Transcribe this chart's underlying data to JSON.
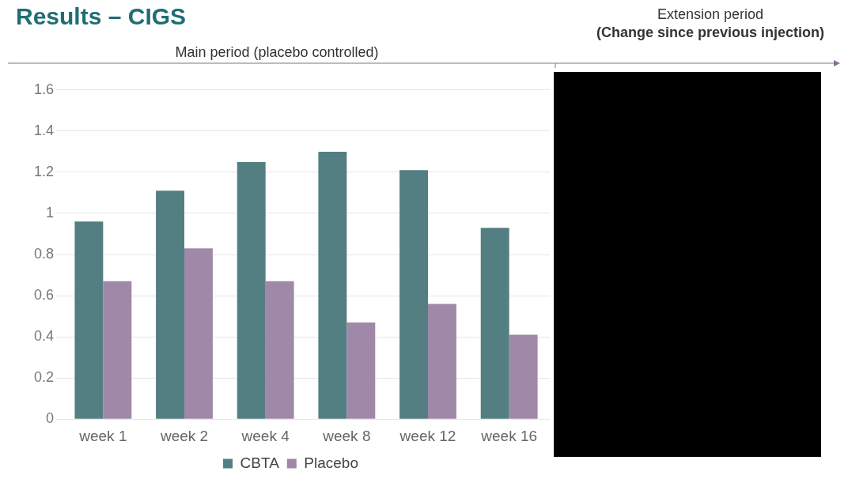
{
  "chart_data": {
    "type": "bar",
    "title": "Results – CIGS",
    "annotations": [
      "Main period (placebo controlled)",
      "Extension period",
      "(Change since previous injection)"
    ],
    "categories": [
      "week 1",
      "week 2",
      "week 4",
      "week 8",
      "week 12",
      "week 16"
    ],
    "series": [
      {
        "name": "CBTA",
        "color": "#537f83",
        "values": [
          0.96,
          1.11,
          1.25,
          1.3,
          1.21,
          0.93
        ]
      },
      {
        "name": "Placebo",
        "color": "#a088a8",
        "values": [
          0.67,
          0.83,
          0.67,
          0.47,
          0.56,
          0.41
        ]
      }
    ],
    "ylim": [
      0,
      1.6
    ],
    "yticks": [
      0,
      0.2,
      0.4,
      0.6,
      0.8,
      1,
      1.2,
      1.4,
      1.6
    ],
    "grid": "y",
    "legend": "bottom"
  }
}
